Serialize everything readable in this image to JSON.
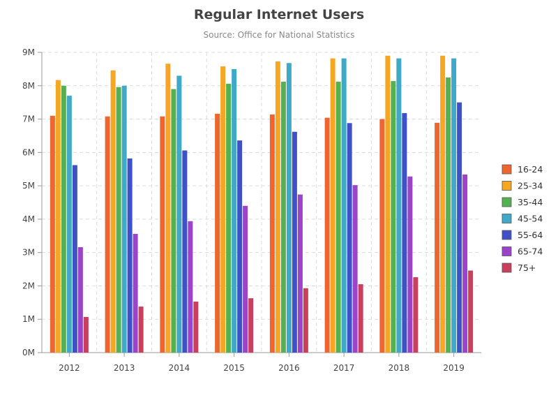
{
  "chart_data": {
    "type": "bar",
    "title": "Regular Internet Users",
    "subtitle": "Source: Office for National Statistics",
    "xlabel": "",
    "ylabel": "",
    "categories": [
      "2012",
      "2013",
      "2014",
      "2015",
      "2016",
      "2017",
      "2018",
      "2019"
    ],
    "ylim": [
      0,
      9000000
    ],
    "y_ticks": [
      {
        "value": 0,
        "label": "0M"
      },
      {
        "value": 1000000,
        "label": "1M"
      },
      {
        "value": 2000000,
        "label": "2M"
      },
      {
        "value": 3000000,
        "label": "3M"
      },
      {
        "value": 4000000,
        "label": "4M"
      },
      {
        "value": 5000000,
        "label": "5M"
      },
      {
        "value": 6000000,
        "label": "6M"
      },
      {
        "value": 7000000,
        "label": "7M"
      },
      {
        "value": 8000000,
        "label": "8M"
      },
      {
        "value": 9000000,
        "label": "9M"
      }
    ],
    "grid": true,
    "legend_position": "right",
    "series": [
      {
        "name": "16-24",
        "color": "#ef6530",
        "values": [
          7100000,
          7080000,
          7080000,
          7160000,
          7140000,
          7040000,
          7000000,
          6890000
        ]
      },
      {
        "name": "25-34",
        "color": "#f5a623",
        "values": [
          8170000,
          8460000,
          8660000,
          8580000,
          8730000,
          8820000,
          8900000,
          8900000
        ]
      },
      {
        "name": "35-44",
        "color": "#55b051",
        "values": [
          8000000,
          7960000,
          7900000,
          8060000,
          8120000,
          8120000,
          8140000,
          8250000
        ]
      },
      {
        "name": "45-54",
        "color": "#3fa9c7",
        "values": [
          7700000,
          8000000,
          8300000,
          8500000,
          8680000,
          8820000,
          8820000,
          8820000
        ]
      },
      {
        "name": "55-64",
        "color": "#3f51c6",
        "values": [
          5620000,
          5820000,
          6060000,
          6360000,
          6620000,
          6880000,
          7180000,
          7500000
        ]
      },
      {
        "name": "65-74",
        "color": "#9b44c9",
        "values": [
          3160000,
          3560000,
          3940000,
          4400000,
          4740000,
          5020000,
          5280000,
          5340000
        ]
      },
      {
        "name": "75+",
        "color": "#c8405e",
        "values": [
          1070000,
          1380000,
          1530000,
          1630000,
          1930000,
          2050000,
          2260000,
          2460000
        ]
      }
    ]
  }
}
